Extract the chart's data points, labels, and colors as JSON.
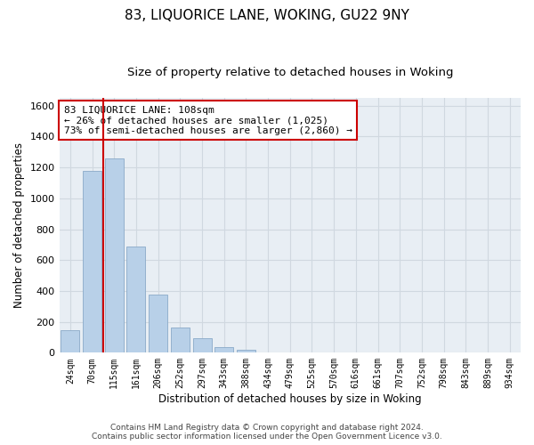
{
  "title": "83, LIQUORICE LANE, WOKING, GU22 9NY",
  "subtitle": "Size of property relative to detached houses in Woking",
  "xlabel": "Distribution of detached houses by size in Woking",
  "ylabel": "Number of detached properties",
  "footer_line1": "Contains HM Land Registry data © Crown copyright and database right 2024.",
  "footer_line2": "Contains public sector information licensed under the Open Government Licence v3.0.",
  "bar_labels": [
    "24sqm",
    "70sqm",
    "115sqm",
    "161sqm",
    "206sqm",
    "252sqm",
    "297sqm",
    "343sqm",
    "388sqm",
    "434sqm",
    "479sqm",
    "525sqm",
    "570sqm",
    "616sqm",
    "661sqm",
    "707sqm",
    "752sqm",
    "798sqm",
    "843sqm",
    "889sqm",
    "934sqm"
  ],
  "bar_values": [
    148,
    1175,
    1260,
    690,
    375,
    162,
    93,
    38,
    22,
    0,
    0,
    0,
    0,
    0,
    0,
    0,
    0,
    0,
    0,
    0,
    0
  ],
  "bar_color": "#b8d0e8",
  "bar_edge_color": "#8aaac8",
  "highlight_color": "#cc0000",
  "annotation_line1": "83 LIQUORICE LANE: 108sqm",
  "annotation_line2": "← 26% of detached houses are smaller (1,025)",
  "annotation_line3": "73% of semi-detached houses are larger (2,860) →",
  "ylim": [
    0,
    1650
  ],
  "yticks": [
    0,
    200,
    400,
    600,
    800,
    1000,
    1200,
    1400,
    1600
  ],
  "grid_color": "#d0d8e0",
  "bg_color": "#e8eef4",
  "vline_x": 1.5,
  "title_fontsize": 11,
  "subtitle_fontsize": 9.5,
  "footer_fontsize": 6.5
}
